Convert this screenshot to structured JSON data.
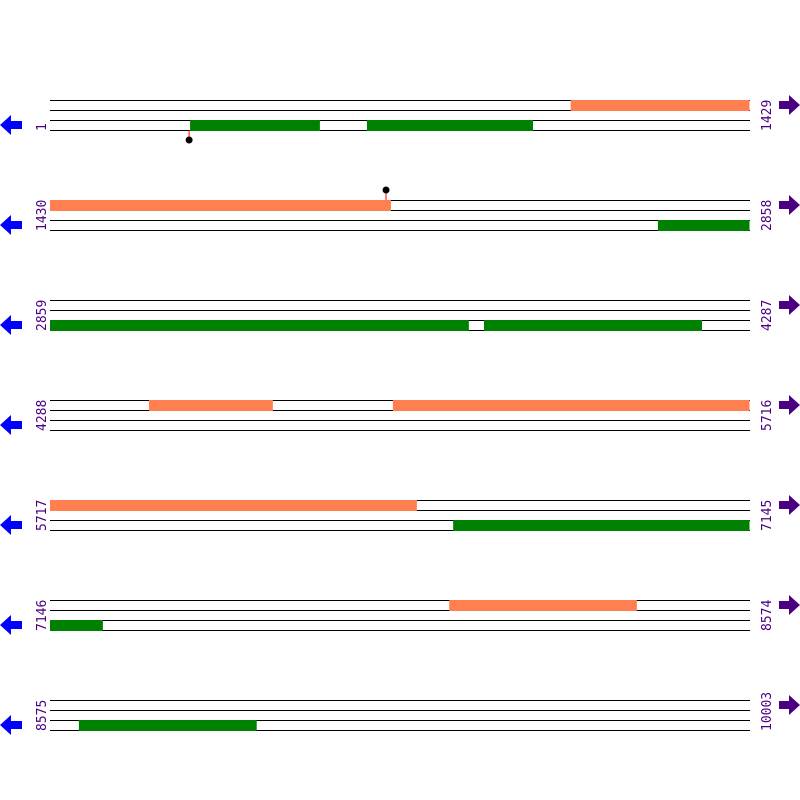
{
  "colors": {
    "forward_feature": "#ff7f50",
    "reverse_feature": "#008000",
    "line": "#000000",
    "label": "#4b0082",
    "left_arrow": "#0000ff",
    "right_arrow": "#4b0082",
    "marker_stem": "#ff0000",
    "marker_head": "#000000"
  },
  "row_length": 1429,
  "rows": [
    {
      "start": "1",
      "end": "1429",
      "s": 1,
      "forward": [
        [
          1064,
          1429
        ]
      ],
      "reverse": [
        [
          287,
          552
        ],
        [
          648,
          987
        ]
      ],
      "markers": [
        {
          "pos": 285,
          "side": "below"
        }
      ]
    },
    {
      "start": "1430",
      "end": "2858",
      "s": 1430,
      "forward": [
        [
          1430,
          2126
        ]
      ],
      "reverse": [
        [
          2671,
          2858
        ]
      ],
      "markers": [
        {
          "pos": 2116,
          "side": "above"
        }
      ]
    },
    {
      "start": "2859",
      "end": "4287",
      "s": 2859,
      "forward": [],
      "reverse": [
        [
          2859,
          3714
        ],
        [
          3745,
          4190
        ]
      ],
      "markers": []
    },
    {
      "start": "4288",
      "end": "5716",
      "s": 4288,
      "forward": [
        [
          4490,
          4743
        ],
        [
          4988,
          5716
        ]
      ],
      "reverse": [],
      "markers": []
    },
    {
      "start": "5717",
      "end": "7145",
      "s": 5717,
      "forward": [
        [
          5717,
          6466
        ]
      ],
      "reverse": [
        [
          6540,
          7145
        ]
      ],
      "markers": []
    },
    {
      "start": "7146",
      "end": "8574",
      "s": 7146,
      "forward": [
        [
          7961,
          8344
        ]
      ],
      "reverse": [
        [
          7146,
          7254
        ]
      ],
      "markers": []
    },
    {
      "start": "8575",
      "end": "10003",
      "s": 8575,
      "forward": [],
      "reverse": [
        [
          8634,
          8997
        ]
      ],
      "markers": []
    }
  ]
}
